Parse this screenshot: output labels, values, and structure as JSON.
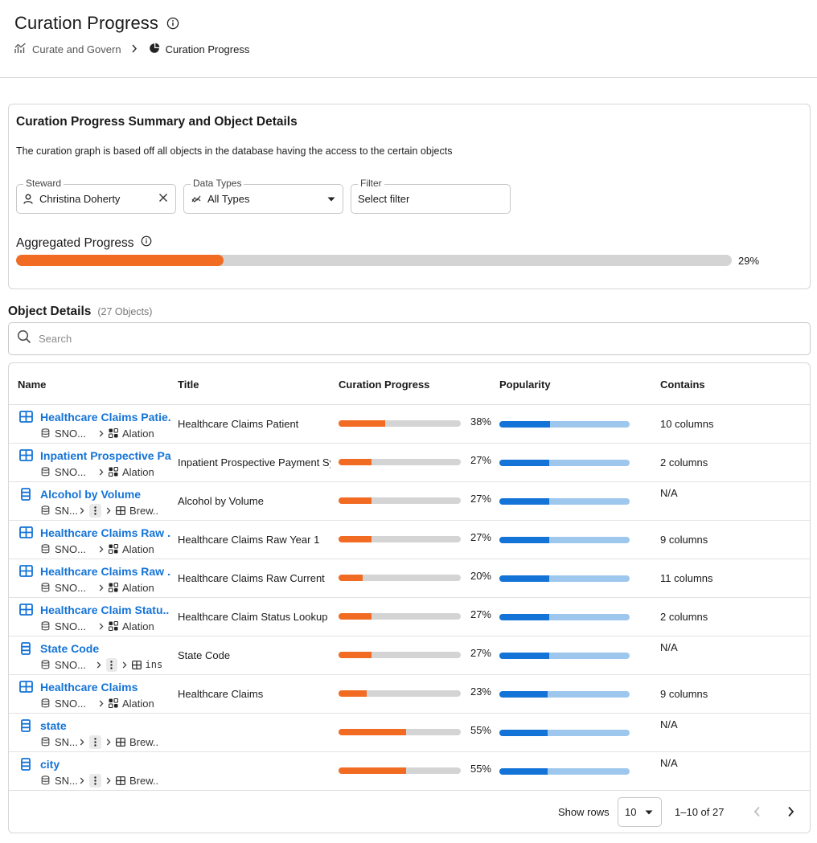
{
  "header": {
    "title": "Curation Progress",
    "breadcrumb": [
      {
        "label": "Curate and Govern",
        "icon": "chart-line-icon"
      },
      {
        "label": "Curation Progress",
        "icon": "pie-chart-icon"
      }
    ]
  },
  "summary": {
    "title": "Curation Progress Summary and Object Details",
    "description": "The curation graph is based off all objects in the database having the access to the certain objects",
    "filters": {
      "steward": {
        "label": "Steward",
        "value": "Christina Doherty"
      },
      "data_types": {
        "label": "Data Types",
        "value": "All Types"
      },
      "filter": {
        "label": "Filter",
        "value": "Select filter"
      }
    },
    "aggregated": {
      "title": "Aggregated Progress",
      "percent": 29,
      "percent_label": "29%"
    }
  },
  "objects": {
    "title": "Object Details",
    "count_label": "(27 Objects)",
    "search_placeholder": "Search",
    "columns": [
      "Name",
      "Title",
      "Curation Progress",
      "Popularity",
      "Contains"
    ],
    "rows": [
      {
        "type": "table",
        "name": "Healthcare Claims Patie..",
        "source": "SNO...",
        "target": "Alation ..",
        "title": "Healthcare Claims Patient",
        "curation": 38,
        "curation_label": "38%",
        "popularity": 0.39,
        "contains": "10 columns"
      },
      {
        "type": "table",
        "name": "Inpatient Prospective Pa..",
        "source": "SNO...",
        "target": "Alation ..",
        "title": "Inpatient Prospective Payment System",
        "curation": 27,
        "curation_label": "27%",
        "popularity": 0.38,
        "contains": "2 columns"
      },
      {
        "type": "column",
        "name": "Alcohol by Volume",
        "source": "SN...",
        "target": "Brew..",
        "title": "Alcohol by Volume",
        "curation": 27,
        "curation_label": "27%",
        "popularity": 0.38,
        "contains": "N/A"
      },
      {
        "type": "table",
        "name": "Healthcare Claims Raw ..",
        "source": "SNO...",
        "target": "Alation ..",
        "title": "Healthcare Claims Raw Year 1",
        "curation": 27,
        "curation_label": "27%",
        "popularity": 0.38,
        "contains": "9 columns"
      },
      {
        "type": "table",
        "name": "Healthcare Claims Raw ..",
        "source": "SNO...",
        "target": "Alation ..",
        "title": "Healthcare Claims Raw Current",
        "curation": 20,
        "curation_label": "20%",
        "popularity": 0.38,
        "contains": "11 columns"
      },
      {
        "type": "table",
        "name": "Healthcare Claim Statu..",
        "source": "SNO...",
        "target": "Alation ..",
        "title": "Healthcare Claim Status Lookup",
        "curation": 27,
        "curation_label": "27%",
        "popularity": 0.38,
        "contains": "2 columns"
      },
      {
        "type": "column",
        "name": "State Code",
        "source": "SNO...",
        "target": "ins",
        "title": "State Code",
        "curation": 27,
        "curation_label": "27%",
        "popularity": 0.38,
        "contains": "N/A"
      },
      {
        "type": "table",
        "name": "Healthcare Claims",
        "source": "SNO...",
        "target": "Alation ..",
        "title": "Healthcare Claims",
        "curation": 23,
        "curation_label": "23%",
        "popularity": 0.37,
        "contains": "9 columns"
      },
      {
        "type": "column",
        "name": "state",
        "source": "SN...",
        "target": "Brew..",
        "title": "",
        "curation": 55,
        "curation_label": "55%",
        "popularity": 0.37,
        "contains": "N/A"
      },
      {
        "type": "column",
        "name": "city",
        "source": "SN...",
        "target": "Brew..",
        "title": "",
        "curation": 55,
        "curation_label": "55%",
        "popularity": 0.37,
        "contains": "N/A"
      }
    ]
  },
  "pagination": {
    "show_rows_label": "Show rows",
    "rows_per_page": "10",
    "range_label": "1–10 of 27"
  },
  "colors": {
    "accent_orange": "#f26b22",
    "link_blue": "#1473d6",
    "popularity_track": "#9ec7ee",
    "track_gray": "#d4d4d4"
  }
}
